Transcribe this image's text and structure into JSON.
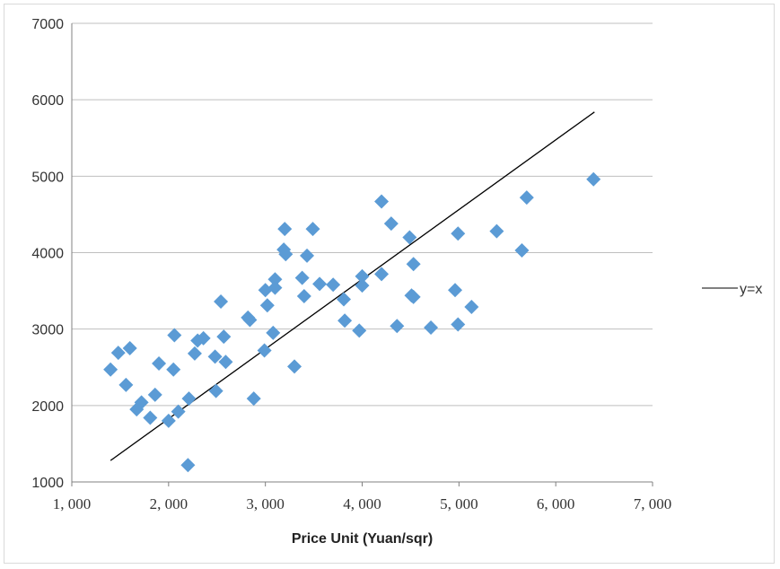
{
  "chart_data": {
    "type": "scatter",
    "title": "",
    "xlabel": "Price Unit (Yuan/sqr)",
    "ylabel": "",
    "xlim": [
      1000,
      7000
    ],
    "ylim": [
      1000,
      7000
    ],
    "x_tick_labels": [
      "1, 000",
      "2, 000",
      "3, 000",
      "4, 000",
      "5, 000",
      "6, 000",
      "7, 000"
    ],
    "y_tick_labels": [
      "1000",
      "2000",
      "3000",
      "4000",
      "5000",
      "6000",
      "7000"
    ],
    "grid": "horizontal",
    "legend_position": "right",
    "marker_color": "#5b9bd5",
    "line_color": "#000000",
    "series": [
      {
        "kind": "points",
        "points": [
          [
            1400,
            2470
          ],
          [
            1480,
            2690
          ],
          [
            1560,
            2270
          ],
          [
            1600,
            2750
          ],
          [
            1670,
            1950
          ],
          [
            1720,
            2040
          ],
          [
            1810,
            1840
          ],
          [
            1860,
            2140
          ],
          [
            1900,
            2550
          ],
          [
            2000,
            1800
          ],
          [
            2050,
            2470
          ],
          [
            2060,
            2920
          ],
          [
            2100,
            1920
          ],
          [
            2200,
            1220
          ],
          [
            2210,
            2090
          ],
          [
            2270,
            2680
          ],
          [
            2300,
            2850
          ],
          [
            2360,
            2880
          ],
          [
            2480,
            2640
          ],
          [
            2490,
            2190
          ],
          [
            2540,
            3360
          ],
          [
            2570,
            2900
          ],
          [
            2590,
            2570
          ],
          [
            2820,
            3150
          ],
          [
            2840,
            3120
          ],
          [
            2880,
            2090
          ],
          [
            2990,
            2720
          ],
          [
            3000,
            3510
          ],
          [
            3020,
            3310
          ],
          [
            3080,
            2950
          ],
          [
            3100,
            3650
          ],
          [
            3100,
            3540
          ],
          [
            3190,
            4040
          ],
          [
            3200,
            4310
          ],
          [
            3210,
            3980
          ],
          [
            3300,
            2510
          ],
          [
            3380,
            3670
          ],
          [
            3400,
            3430
          ],
          [
            3430,
            3960
          ],
          [
            3490,
            4310
          ],
          [
            3560,
            3590
          ],
          [
            3700,
            3580
          ],
          [
            3810,
            3390
          ],
          [
            3820,
            3110
          ],
          [
            3970,
            2980
          ],
          [
            4000,
            3690
          ],
          [
            4000,
            3570
          ],
          [
            4200,
            4670
          ],
          [
            4200,
            3720
          ],
          [
            4300,
            4380
          ],
          [
            4360,
            3040
          ],
          [
            4490,
            4200
          ],
          [
            4510,
            3440
          ],
          [
            4530,
            3420
          ],
          [
            4530,
            3850
          ],
          [
            4710,
            3020
          ],
          [
            4960,
            3510
          ],
          [
            4990,
            4250
          ],
          [
            4990,
            3060
          ],
          [
            5130,
            3290
          ],
          [
            5390,
            4280
          ],
          [
            5650,
            4030
          ],
          [
            5700,
            4720
          ],
          [
            6390,
            4960
          ]
        ]
      },
      {
        "kind": "line",
        "name": "y=x",
        "points": [
          [
            1400,
            1280
          ],
          [
            6400,
            5840
          ]
        ]
      }
    ]
  }
}
